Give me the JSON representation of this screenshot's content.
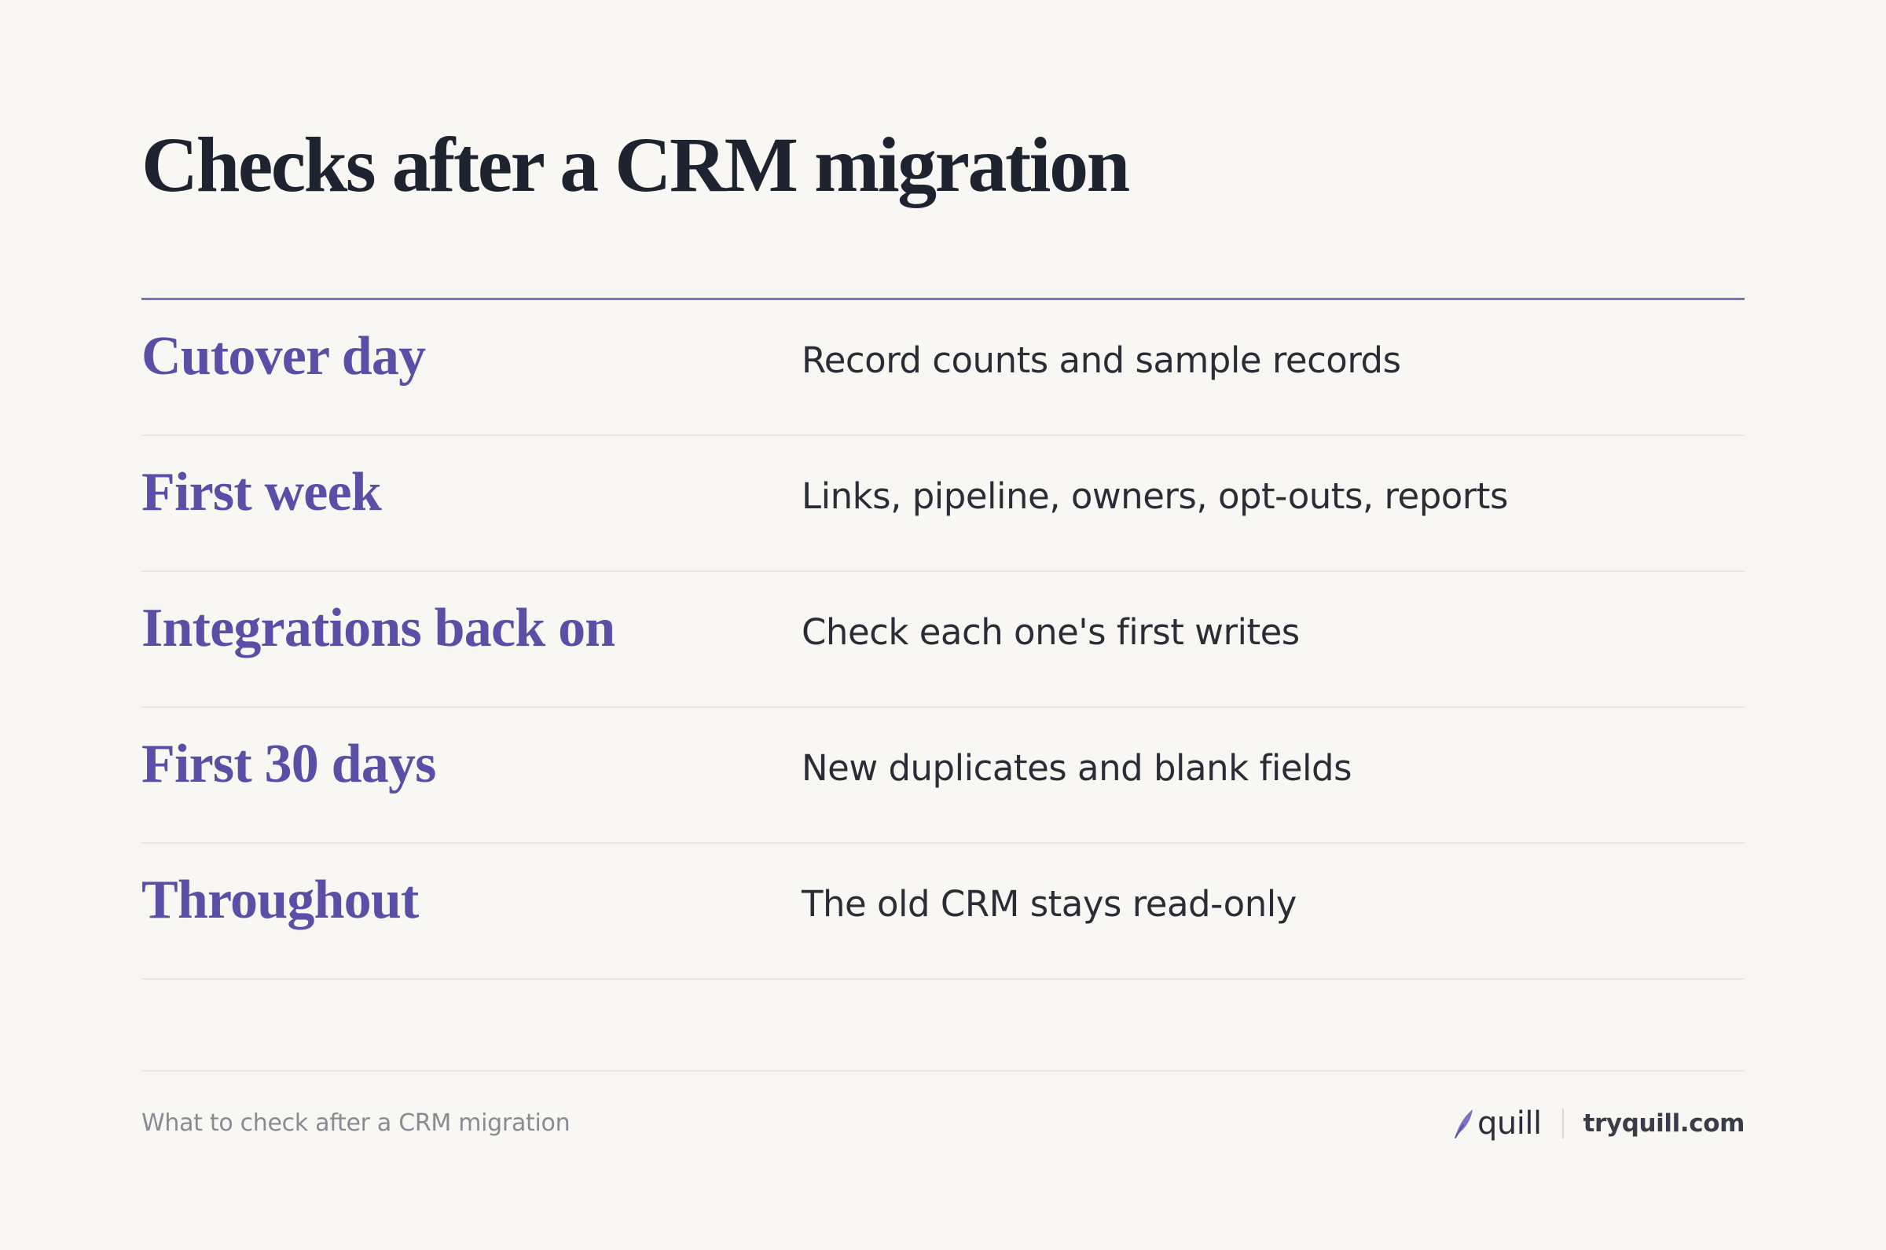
{
  "title": "Checks after a CRM migration",
  "rows": [
    {
      "label": "Cutover day",
      "description": "Record counts and sample records"
    },
    {
      "label": "First week",
      "description": "Links, pipeline, owners, opt-outs, reports"
    },
    {
      "label": "Integrations back on",
      "description": "Check each one's first writes"
    },
    {
      "label": "First 30 days",
      "description": "New duplicates and blank fields"
    },
    {
      "label": "Throughout",
      "description": "The old CRM stays read-only"
    }
  ],
  "footer": {
    "caption": "What to check after a CRM migration",
    "brand_name": "quill",
    "brand_icon": "quill-feather-icon",
    "url": "tryquill.com"
  },
  "colors": {
    "background": "#f9f7f3",
    "title": "#1e2330",
    "accent": "#5a4fa6",
    "rule": "#7b72c8",
    "body_text": "#2a2d36",
    "muted_text": "#8a8a92"
  }
}
